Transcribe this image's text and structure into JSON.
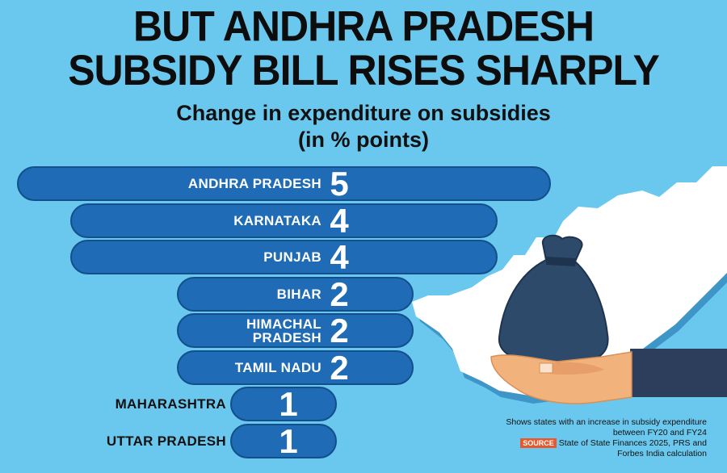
{
  "title_line1": "BUT ANDHRA PRADESH",
  "title_line2": "SUBSIDY BILL RISES SHARPLY",
  "subtitle": "Change in expenditure on subsidies",
  "units": "(in % points)",
  "note": "Shows states with an increase in subsidy expenditure between FY20 and FY24",
  "source_label": "SOURCE",
  "source_text": "State of State Finances 2025, PRS and Forbes India calculation",
  "colors": {
    "background": "#6ac8ee",
    "bar": "#1f6bb5",
    "bar_border": "#134f8a",
    "map": "#ffffff",
    "map_shadow": "#3e95c7",
    "bag": "#2e4a6b",
    "hand": "#f2b27c",
    "sleeve": "#2c3e5c",
    "source_tag": "#e8582a"
  },
  "icons": [
    "money-bag-icon",
    "hand-icon",
    "andhra-pradesh-map"
  ],
  "chart_data": {
    "type": "bar",
    "orientation": "horizontal",
    "title": "BUT ANDHRA PRADESH SUBSIDY BILL RISES SHARPLY",
    "subtitle": "Change in expenditure on subsidies",
    "ylabel": "(in % points)",
    "categories": [
      "ANDHRA PRADESH",
      "KARNATAKA",
      "PUNJAB",
      "BIHAR",
      "HIMACHAL PRADESH",
      "TAMIL NADU",
      "MAHARASHTRA",
      "UTTAR PRADESH"
    ],
    "category_lines": [
      [
        "ANDHRA PRADESH"
      ],
      [
        "KARNATAKA"
      ],
      [
        "PUNJAB"
      ],
      [
        "BIHAR"
      ],
      [
        "HIMACHAL",
        "PRADESH"
      ],
      [
        "TAMIL NADU"
      ],
      [
        "MAHARASHTRA"
      ],
      [
        "UTTAR PRADESH"
      ]
    ],
    "values": [
      5,
      4,
      4,
      2,
      2,
      2,
      1,
      1
    ],
    "grid": false,
    "legend": "none"
  }
}
